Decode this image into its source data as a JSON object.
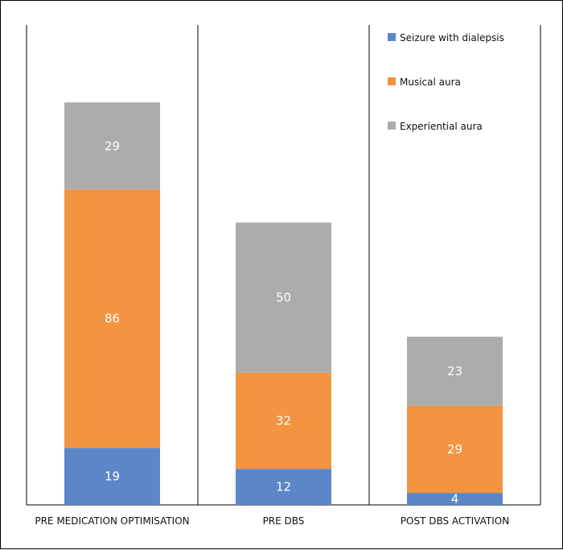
{
  "chart_data": {
    "type": "bar",
    "stacked": true,
    "categories": [
      "PRE MEDICATION OPTIMISATION",
      "PRE DBS",
      "POST DBS ACTIVATION"
    ],
    "series": [
      {
        "name": "Seizure with dialepsis",
        "color": "#5b87c8",
        "values": [
          19,
          12,
          4
        ]
      },
      {
        "name": "Musical aura",
        "color": "#f39441",
        "values": [
          86,
          32,
          29
        ]
      },
      {
        "name": "Experiential aura",
        "color": "#acacac",
        "values": [
          29,
          50,
          23
        ]
      }
    ],
    "legend_position": "top-right",
    "grid": false
  }
}
